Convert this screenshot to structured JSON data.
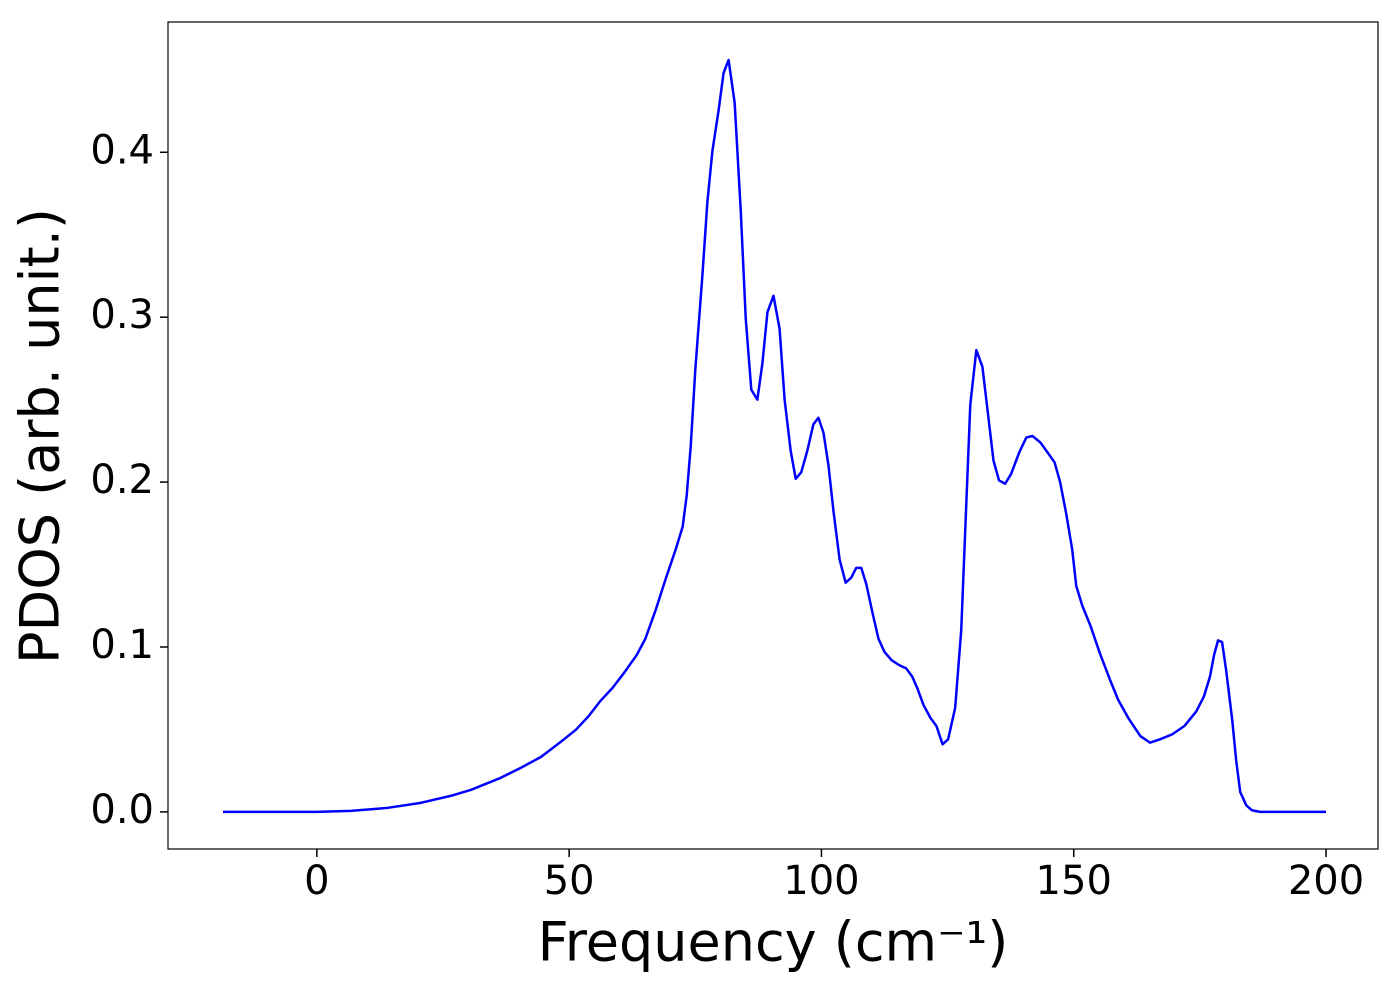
{
  "chart_data": {
    "type": "line",
    "x_label": "Frequency (cm⁻¹)",
    "y_label": "PDOS (arb. unit.)",
    "color": "#0000ff",
    "xlim": [
      -29.5,
      210.3
    ],
    "ylim": [
      -0.0225,
      0.479
    ],
    "xticks": [
      0,
      50,
      100,
      150,
      200
    ],
    "yticks": [
      {
        "value": 0,
        "label": "0.0"
      },
      0.1,
      0.2,
      0.3,
      0.4
    ],
    "x": [
      -18.6,
      0,
      6.7,
      13.9,
      20.6,
      26.5,
      30.5,
      36.4,
      40.4,
      44.4,
      48.3,
      51.3,
      53.9,
      56.2,
      58.6,
      61.0,
      63.4,
      65.1,
      67.1,
      69.1,
      71.1,
      72.5,
      73.3,
      74.1,
      75.0,
      76.4,
      77.4,
      78.4,
      79.6,
      80.6,
      81.6,
      82.8,
      84.0,
      85.0,
      86.1,
      87.3,
      88.3,
      89.3,
      90.5,
      91.7,
      92.7,
      93.9,
      94.9,
      96.0,
      97.2,
      98.4,
      99.4,
      100.4,
      101.4,
      102.4,
      103.6,
      104.8,
      105.9,
      106.9,
      107.9,
      108.9,
      110.1,
      111.3,
      112.5,
      113.9,
      115.4,
      116.8,
      118.0,
      119.0,
      120.2,
      121.6,
      122.8,
      124.0,
      125.1,
      126.5,
      127.7,
      129.5,
      130.7,
      131.9,
      134.1,
      135.2,
      136.4,
      137.6,
      139.2,
      140.6,
      141.8,
      143.4,
      144.8,
      146.2,
      147.3,
      148.5,
      149.7,
      150.5,
      151.7,
      153.3,
      155.2,
      157.2,
      158.8,
      160.8,
      163.2,
      165.1,
      167.1,
      169.5,
      171.9,
      174.3,
      175.8,
      177.0,
      177.8,
      178.6,
      179.4,
      180.2,
      181.4,
      182.2,
      183.0,
      184.2,
      185.3,
      186.9,
      200
    ],
    "values": [
      0,
      0,
      0.0006,
      0.0024,
      0.0055,
      0.0097,
      0.0133,
      0.0206,
      0.0267,
      0.0333,
      0.0424,
      0.0497,
      0.0582,
      0.0673,
      0.0752,
      0.0848,
      0.0952,
      0.105,
      0.122,
      0.141,
      0.159,
      0.173,
      0.192,
      0.222,
      0.268,
      0.325,
      0.37,
      0.401,
      0.425,
      0.448,
      0.456,
      0.43,
      0.365,
      0.299,
      0.256,
      0.25,
      0.272,
      0.303,
      0.313,
      0.293,
      0.25,
      0.219,
      0.202,
      0.206,
      0.219,
      0.235,
      0.239,
      0.23,
      0.21,
      0.182,
      0.153,
      0.139,
      0.142,
      0.148,
      0.148,
      0.138,
      0.121,
      0.105,
      0.097,
      0.092,
      0.089,
      0.087,
      0.082,
      0.075,
      0.065,
      0.057,
      0.052,
      0.041,
      0.044,
      0.063,
      0.11,
      0.247,
      0.28,
      0.27,
      0.213,
      0.201,
      0.199,
      0.205,
      0.218,
      0.227,
      0.228,
      0.224,
      0.218,
      0.212,
      0.2,
      0.181,
      0.159,
      0.137,
      0.125,
      0.113,
      0.096,
      0.08,
      0.068,
      0.057,
      0.046,
      0.042,
      0.044,
      0.047,
      0.052,
      0.061,
      0.07,
      0.082,
      0.095,
      0.104,
      0.103,
      0.086,
      0.056,
      0.031,
      0.012,
      0.004,
      0.001,
      0,
      0
    ]
  }
}
